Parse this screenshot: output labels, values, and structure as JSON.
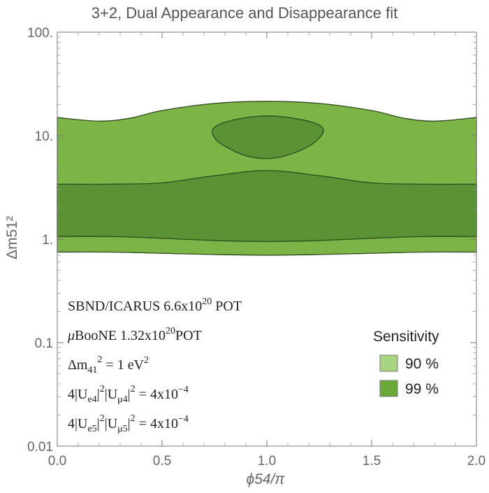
{
  "chart_data": {
    "type": "contour",
    "title": "3+2, Dual Appearance and Disappearance fit",
    "xlabel": "ϕ54/π",
    "ylabel": "Δm51²",
    "xlim": [
      0.0,
      2.0
    ],
    "ylim": [
      0.01,
      100
    ],
    "yscale": "log",
    "xticks": [
      "0.0",
      "0.5",
      "1.0",
      "1.5",
      "2.0"
    ],
    "yticks": [
      {
        "value": 100,
        "label": "100."
      },
      {
        "value": 10,
        "label": "10."
      },
      {
        "value": 1,
        "label": "1."
      },
      {
        "value": 0.1,
        "label": "0.1"
      },
      {
        "value": 0.01,
        "label": "0.01"
      }
    ],
    "legend": {
      "title": "Sensitivity",
      "position": "right",
      "entries": [
        {
          "label": "90 %",
          "color": "#a8d47f"
        },
        {
          "label": "99 %",
          "color": "#6aa83a"
        }
      ]
    },
    "regions": [
      {
        "name": "outer-band",
        "color": "#7db446",
        "upper": [
          [
            0.0,
            15.0
          ],
          [
            0.2,
            13.8
          ],
          [
            0.35,
            14.8
          ],
          [
            0.5,
            17.5
          ],
          [
            0.75,
            20.5
          ],
          [
            1.0,
            21.5
          ],
          [
            1.25,
            20.5
          ],
          [
            1.5,
            17.5
          ],
          [
            1.65,
            14.8
          ],
          [
            1.8,
            13.8
          ],
          [
            2.0,
            15.0
          ]
        ],
        "lower": [
          [
            0.0,
            0.75
          ],
          [
            0.25,
            0.75
          ],
          [
            0.5,
            0.73
          ],
          [
            0.75,
            0.71
          ],
          [
            1.0,
            0.7
          ],
          [
            1.25,
            0.71
          ],
          [
            1.5,
            0.73
          ],
          [
            1.75,
            0.75
          ],
          [
            2.0,
            0.75
          ]
        ]
      },
      {
        "name": "inner-band",
        "color": "#5b9334",
        "upper": [
          [
            0.0,
            3.4
          ],
          [
            0.25,
            3.4
          ],
          [
            0.5,
            3.5
          ],
          [
            0.75,
            4.1
          ],
          [
            1.0,
            4.6
          ],
          [
            1.25,
            4.1
          ],
          [
            1.5,
            3.5
          ],
          [
            1.75,
            3.4
          ],
          [
            2.0,
            3.4
          ]
        ],
        "lower": [
          [
            0.0,
            1.06
          ],
          [
            0.25,
            1.06
          ],
          [
            0.5,
            1.02
          ],
          [
            0.75,
            0.97
          ],
          [
            1.0,
            0.95
          ],
          [
            1.25,
            0.97
          ],
          [
            1.5,
            1.02
          ],
          [
            1.75,
            1.06
          ],
          [
            2.0,
            1.06
          ]
        ]
      },
      {
        "name": "island",
        "color": "#5b9334",
        "closed": [
          [
            0.74,
            11.2
          ],
          [
            0.78,
            13.0
          ],
          [
            0.88,
            14.7
          ],
          [
            1.0,
            15.5
          ],
          [
            1.12,
            14.8
          ],
          [
            1.23,
            13.2
          ],
          [
            1.27,
            11.4
          ],
          [
            1.25,
            9.5
          ],
          [
            1.2,
            7.9
          ],
          [
            1.1,
            6.5
          ],
          [
            1.0,
            6.0
          ],
          [
            0.9,
            6.4
          ],
          [
            0.82,
            7.5
          ],
          [
            0.76,
            9.0
          ],
          [
            0.74,
            11.2
          ]
        ]
      }
    ],
    "annotations": [
      {
        "base": "SBND/ICARUS 6.6x10",
        "sup": "20",
        "tail": " POT"
      },
      {
        "greek": "μ",
        "base": "BooNE 1.32x10",
        "sup": "20",
        "tail": "POT"
      },
      {
        "base": "Δm",
        "sub": "41",
        "sup": "2",
        "tail": " = 1 eV",
        "sup2": "2"
      },
      {
        "base": "4|U",
        "sub": "e4",
        "mid": "|",
        "sup": "2",
        "mid2": "|U",
        "sub2": "μ4",
        "mid3": "|",
        "sup2": "2",
        "tail": " = 4x10",
        "sup3": "−4"
      },
      {
        "base": "4|U",
        "sub": "e5",
        "mid": "|",
        "sup": "2",
        "mid2": "|U",
        "sub2": "μ5",
        "mid3": "|",
        "sup2": "2",
        "tail": " = 4x10",
        "sup3": "−4"
      }
    ]
  }
}
